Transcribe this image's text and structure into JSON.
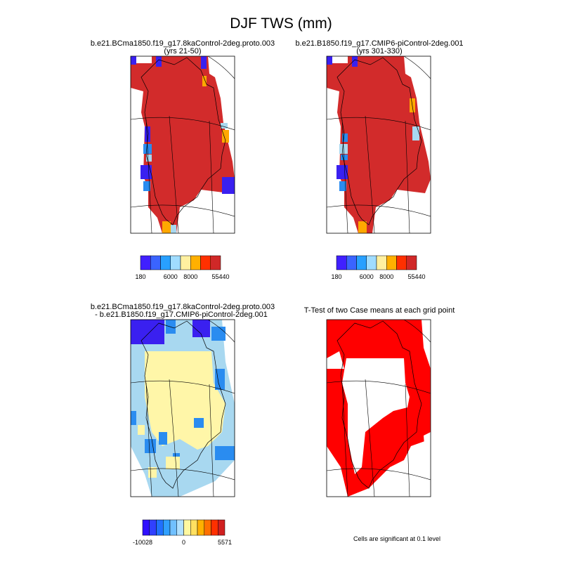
{
  "title": "DJF TWS (mm)",
  "panels": [
    {
      "title": "b.e21.BCma1850.f19_g17.8kaControl-2deg.proto.003",
      "subtitle": "(yrs 21-50)",
      "colorbar_labels": [
        "180",
        "6000",
        "8000",
        "55440"
      ]
    },
    {
      "title": "b.e21.B1850.f19_g17.CMIP6-piControl-2deg.001",
      "subtitle": "(yrs 301-330)",
      "colorbar_labels": [
        "180",
        "6000",
        "8000",
        "55440"
      ]
    },
    {
      "title": "b.e21.BCma1850.f19_g17.8kaControl-2deg.proto.003",
      "subtitle": "- b.e21.B1850.f19_g17.CMIP6-piControl-2deg.001",
      "colorbar_labels": [
        "-10028",
        "0",
        "5571"
      ]
    },
    {
      "title": "T-Test of two Case means at each grid point"
    }
  ],
  "note": "Cells are significant at 0.1 level"
}
